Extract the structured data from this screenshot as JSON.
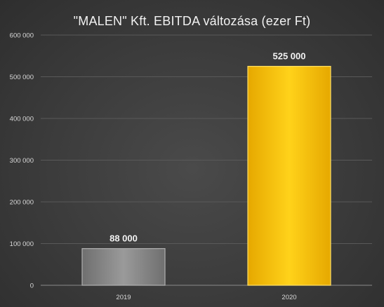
{
  "chart_data": {
    "type": "bar",
    "title": "\"MALEN\" Kft. EBITDA változása (ezer Ft)",
    "categories": [
      "2019",
      "2020"
    ],
    "values": [
      88000,
      525000
    ],
    "data_labels": [
      "88 000",
      "525 000"
    ],
    "ylim": [
      0,
      600000
    ],
    "yticks": [
      0,
      100000,
      200000,
      300000,
      400000,
      500000,
      600000
    ],
    "ytick_labels": [
      "0",
      "100 000",
      "200 000",
      "300 000",
      "400 000",
      "500 000",
      "600 000"
    ],
    "grid": true,
    "legend": "none",
    "colors": {
      "bar_2019": "#8c8c8c",
      "bar_2020": "#ffc000",
      "grid": "#595959",
      "background": "#3b3b3b"
    }
  }
}
